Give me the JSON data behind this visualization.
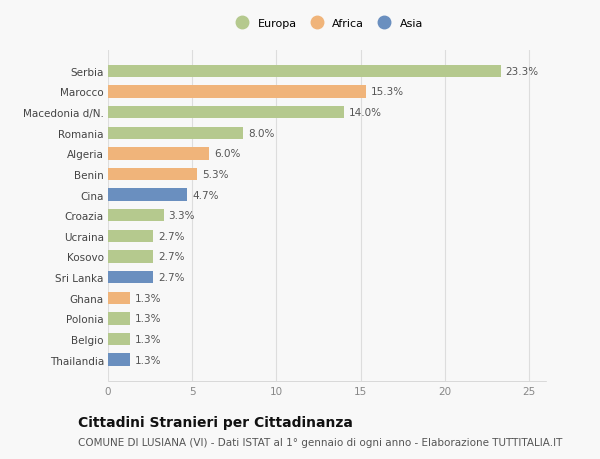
{
  "countries": [
    "Serbia",
    "Marocco",
    "Macedonia d/N.",
    "Romania",
    "Algeria",
    "Benin",
    "Cina",
    "Croazia",
    "Ucraina",
    "Kosovo",
    "Sri Lanka",
    "Ghana",
    "Polonia",
    "Belgio",
    "Thailandia"
  ],
  "values": [
    23.3,
    15.3,
    14.0,
    8.0,
    6.0,
    5.3,
    4.7,
    3.3,
    2.7,
    2.7,
    2.7,
    1.3,
    1.3,
    1.3,
    1.3
  ],
  "continents": [
    "Europa",
    "Africa",
    "Europa",
    "Europa",
    "Africa",
    "Africa",
    "Asia",
    "Europa",
    "Europa",
    "Europa",
    "Asia",
    "Africa",
    "Europa",
    "Europa",
    "Asia"
  ],
  "colors": {
    "Europa": "#b5c98e",
    "Africa": "#f0b47a",
    "Asia": "#6a8fbf"
  },
  "legend_labels": [
    "Europa",
    "Africa",
    "Asia"
  ],
  "xlim": [
    0,
    26
  ],
  "xticks": [
    0,
    5,
    10,
    15,
    20,
    25
  ],
  "title": "Cittadini Stranieri per Cittadinanza",
  "subtitle": "COMUNE DI LUSIANA (VI) - Dati ISTAT al 1° gennaio di ogni anno - Elaborazione TUTTITALIA.IT",
  "bg_color": "#f8f8f8",
  "grid_color": "#dddddd",
  "bar_height": 0.6,
  "label_fontsize": 7.5,
  "tick_fontsize": 7.5,
  "title_fontsize": 10,
  "subtitle_fontsize": 7.5
}
